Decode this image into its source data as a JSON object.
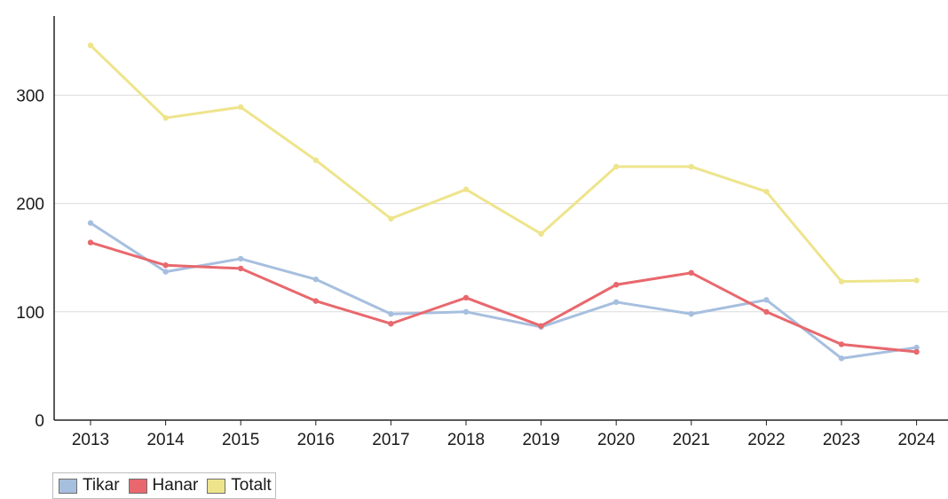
{
  "chart_data": {
    "type": "line",
    "title": "",
    "xlabel": "",
    "ylabel": "",
    "categories": [
      "2013",
      "2014",
      "2015",
      "2016",
      "2017",
      "2018",
      "2019",
      "2020",
      "2021",
      "2022",
      "2023",
      "2024"
    ],
    "ylim": [
      0,
      360
    ],
    "yticks": [
      "0",
      "100",
      "200",
      "300"
    ],
    "grid": "horizontal",
    "legend_position": "bottom-left",
    "series": [
      {
        "name": "Tikar",
        "color": "#a7bfdf",
        "values": [
          182,
          137,
          149,
          130,
          98,
          100,
          86,
          109,
          98,
          111,
          57,
          67
        ]
      },
      {
        "name": "Hanar",
        "color": "#e8686d",
        "values": [
          164,
          143,
          140,
          110,
          89,
          113,
          87,
          125,
          136,
          100,
          70,
          63
        ]
      },
      {
        "name": "Totalt",
        "color": "#eee48c",
        "values": [
          346,
          279,
          289,
          240,
          186,
          213,
          172,
          234,
          234,
          211,
          128,
          129
        ]
      }
    ]
  }
}
